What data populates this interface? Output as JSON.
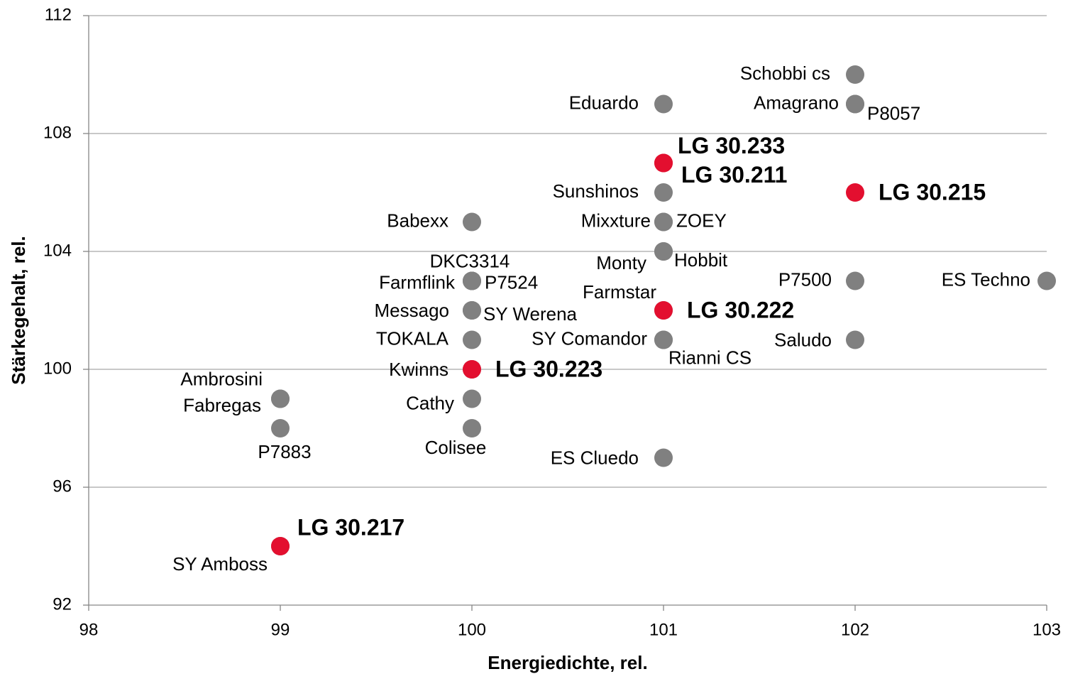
{
  "chart_data": {
    "type": "scatter",
    "x_label": "Energiedichte, rel.",
    "y_label": "Stärkegehalt,  rel.",
    "xlim": [
      98,
      103
    ],
    "xticks": [
      98,
      99,
      100,
      101,
      102,
      103
    ],
    "ylim": [
      92,
      112
    ],
    "yticks": [
      92,
      96,
      100,
      104,
      108,
      112
    ],
    "grid": true,
    "series": [
      {
        "color": "#808080",
        "labels": [
          "Schobbi cs",
          "Amagrano",
          "P8057",
          "Eduardo",
          "Sunshinos",
          "Babexx",
          "Mixxture",
          "ZOEY",
          "Monty",
          "Hobbit",
          "DKC3314",
          "Farmflink",
          "P7524",
          "Farmstar",
          "Messago",
          "SY Werena",
          "TOKALA",
          "SY Comandor",
          "Rianni CS",
          "P7500",
          "ES Techno",
          "Saludo",
          "Kwinns",
          "Ambrosini",
          "Fabregas",
          "Cathy",
          "P7883",
          "Colisee",
          "ES Cluedo",
          "SY Amboss"
        ],
        "x": [
          102,
          102,
          102,
          101,
          101,
          100,
          101,
          101,
          101,
          101,
          100,
          100,
          100,
          101,
          100,
          100,
          100,
          101,
          101,
          102,
          103,
          102,
          100,
          99,
          99,
          100,
          99,
          100,
          101,
          99
        ],
        "y": [
          110,
          109,
          109,
          109,
          106,
          105,
          105,
          105,
          104,
          104,
          103,
          103,
          103,
          102,
          102,
          102,
          101,
          101,
          101,
          103,
          103,
          101,
          100,
          99,
          99,
          99,
          98,
          98,
          97,
          94
        ]
      },
      {
        "color": "#e30f2f",
        "labels": [
          "LG 30.233",
          "LG 30.211",
          "LG 30.215",
          "LG 30.222",
          "LG 30.223",
          "LG 30.217"
        ],
        "x": [
          101,
          101,
          102,
          101,
          100,
          99
        ],
        "y": [
          107,
          107,
          106,
          102,
          100,
          94
        ]
      }
    ]
  }
}
